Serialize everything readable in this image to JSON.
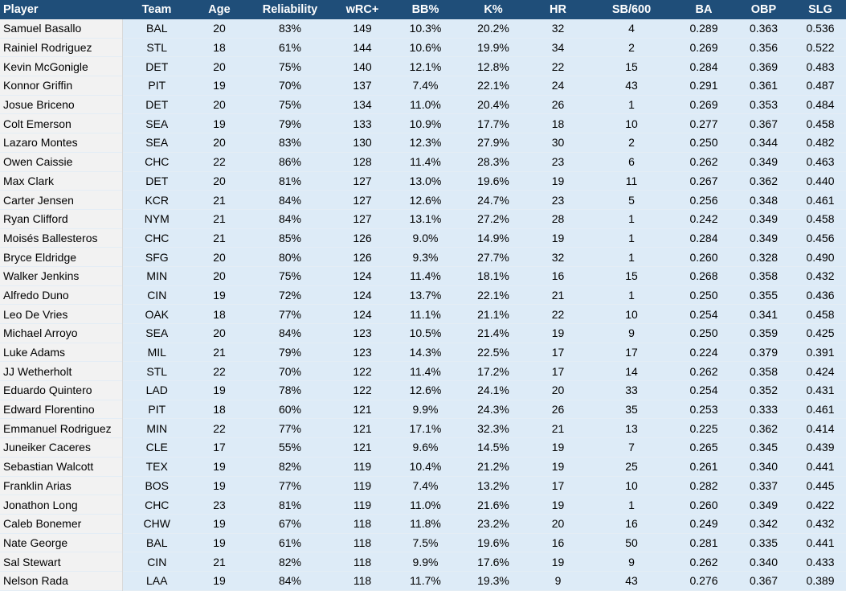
{
  "columns": [
    "Player",
    "Team",
    "Age",
    "Reliability",
    "wRC+",
    "BB%",
    "K%",
    "HR",
    "SB/600",
    "BA",
    "OBP",
    "SLG"
  ],
  "rows": [
    [
      "Samuel Basallo",
      "BAL",
      "20",
      "83%",
      "149",
      "10.3%",
      "20.2%",
      "32",
      "4",
      "0.289",
      "0.363",
      "0.536"
    ],
    [
      "Rainiel Rodriguez",
      "STL",
      "18",
      "61%",
      "144",
      "10.6%",
      "19.9%",
      "34",
      "2",
      "0.269",
      "0.356",
      "0.522"
    ],
    [
      "Kevin McGonigle",
      "DET",
      "20",
      "75%",
      "140",
      "12.1%",
      "12.8%",
      "22",
      "15",
      "0.284",
      "0.369",
      "0.483"
    ],
    [
      "Konnor Griffin",
      "PIT",
      "19",
      "70%",
      "137",
      "7.4%",
      "22.1%",
      "24",
      "43",
      "0.291",
      "0.361",
      "0.487"
    ],
    [
      "Josue Briceno",
      "DET",
      "20",
      "75%",
      "134",
      "11.0%",
      "20.4%",
      "26",
      "1",
      "0.269",
      "0.353",
      "0.484"
    ],
    [
      "Colt Emerson",
      "SEA",
      "19",
      "79%",
      "133",
      "10.9%",
      "17.7%",
      "18",
      "10",
      "0.277",
      "0.367",
      "0.458"
    ],
    [
      "Lazaro Montes",
      "SEA",
      "20",
      "83%",
      "130",
      "12.3%",
      "27.9%",
      "30",
      "2",
      "0.250",
      "0.344",
      "0.482"
    ],
    [
      "Owen Caissie",
      "CHC",
      "22",
      "86%",
      "128",
      "11.4%",
      "28.3%",
      "23",
      "6",
      "0.262",
      "0.349",
      "0.463"
    ],
    [
      "Max Clark",
      "DET",
      "20",
      "81%",
      "127",
      "13.0%",
      "19.6%",
      "19",
      "11",
      "0.267",
      "0.362",
      "0.440"
    ],
    [
      "Carter Jensen",
      "KCR",
      "21",
      "84%",
      "127",
      "12.6%",
      "24.7%",
      "23",
      "5",
      "0.256",
      "0.348",
      "0.461"
    ],
    [
      "Ryan Clifford",
      "NYM",
      "21",
      "84%",
      "127",
      "13.1%",
      "27.2%",
      "28",
      "1",
      "0.242",
      "0.349",
      "0.458"
    ],
    [
      "Moisés Ballesteros",
      "CHC",
      "21",
      "85%",
      "126",
      "9.0%",
      "14.9%",
      "19",
      "1",
      "0.284",
      "0.349",
      "0.456"
    ],
    [
      "Bryce Eldridge",
      "SFG",
      "20",
      "80%",
      "126",
      "9.3%",
      "27.7%",
      "32",
      "1",
      "0.260",
      "0.328",
      "0.490"
    ],
    [
      "Walker Jenkins",
      "MIN",
      "20",
      "75%",
      "124",
      "11.4%",
      "18.1%",
      "16",
      "15",
      "0.268",
      "0.358",
      "0.432"
    ],
    [
      "Alfredo Duno",
      "CIN",
      "19",
      "72%",
      "124",
      "13.7%",
      "22.1%",
      "21",
      "1",
      "0.250",
      "0.355",
      "0.436"
    ],
    [
      "Leo De Vries",
      "OAK",
      "18",
      "77%",
      "124",
      "11.1%",
      "21.1%",
      "22",
      "10",
      "0.254",
      "0.341",
      "0.458"
    ],
    [
      "Michael Arroyo",
      "SEA",
      "20",
      "84%",
      "123",
      "10.5%",
      "21.4%",
      "19",
      "9",
      "0.250",
      "0.359",
      "0.425"
    ],
    [
      "Luke Adams",
      "MIL",
      "21",
      "79%",
      "123",
      "14.3%",
      "22.5%",
      "17",
      "17",
      "0.224",
      "0.379",
      "0.391"
    ],
    [
      "JJ Wetherholt",
      "STL",
      "22",
      "70%",
      "122",
      "11.4%",
      "17.2%",
      "17",
      "14",
      "0.262",
      "0.358",
      "0.424"
    ],
    [
      "Eduardo Quintero",
      "LAD",
      "19",
      "78%",
      "122",
      "12.6%",
      "24.1%",
      "20",
      "33",
      "0.254",
      "0.352",
      "0.431"
    ],
    [
      "Edward Florentino",
      "PIT",
      "18",
      "60%",
      "121",
      "9.9%",
      "24.3%",
      "26",
      "35",
      "0.253",
      "0.333",
      "0.461"
    ],
    [
      "Emmanuel Rodriguez",
      "MIN",
      "22",
      "77%",
      "121",
      "17.1%",
      "32.3%",
      "21",
      "13",
      "0.225",
      "0.362",
      "0.414"
    ],
    [
      "Juneiker Caceres",
      "CLE",
      "17",
      "55%",
      "121",
      "9.6%",
      "14.5%",
      "19",
      "7",
      "0.265",
      "0.345",
      "0.439"
    ],
    [
      "Sebastian Walcott",
      "TEX",
      "19",
      "82%",
      "119",
      "10.4%",
      "21.2%",
      "19",
      "25",
      "0.261",
      "0.340",
      "0.441"
    ],
    [
      "Franklin Arias",
      "BOS",
      "19",
      "77%",
      "119",
      "7.4%",
      "13.2%",
      "17",
      "10",
      "0.282",
      "0.337",
      "0.445"
    ],
    [
      "Jonathon Long",
      "CHC",
      "23",
      "81%",
      "119",
      "11.0%",
      "21.6%",
      "19",
      "1",
      "0.260",
      "0.349",
      "0.422"
    ],
    [
      "Caleb Bonemer",
      "CHW",
      "19",
      "67%",
      "118",
      "11.8%",
      "23.2%",
      "20",
      "16",
      "0.249",
      "0.342",
      "0.432"
    ],
    [
      "Nate George",
      "BAL",
      "19",
      "61%",
      "118",
      "7.5%",
      "19.6%",
      "16",
      "50",
      "0.281",
      "0.335",
      "0.441"
    ],
    [
      "Sal Stewart",
      "CIN",
      "21",
      "82%",
      "118",
      "9.9%",
      "17.6%",
      "19",
      "9",
      "0.262",
      "0.340",
      "0.433"
    ],
    [
      "Nelson Rada",
      "LAA",
      "19",
      "84%",
      "118",
      "11.7%",
      "19.3%",
      "9",
      "43",
      "0.276",
      "0.367",
      "0.389"
    ]
  ],
  "colors": {
    "header_bg": "#1f4e79",
    "header_text": "#ffffff",
    "player_col_bg": "#f2f2f2",
    "data_bg": "#ddebf7"
  }
}
